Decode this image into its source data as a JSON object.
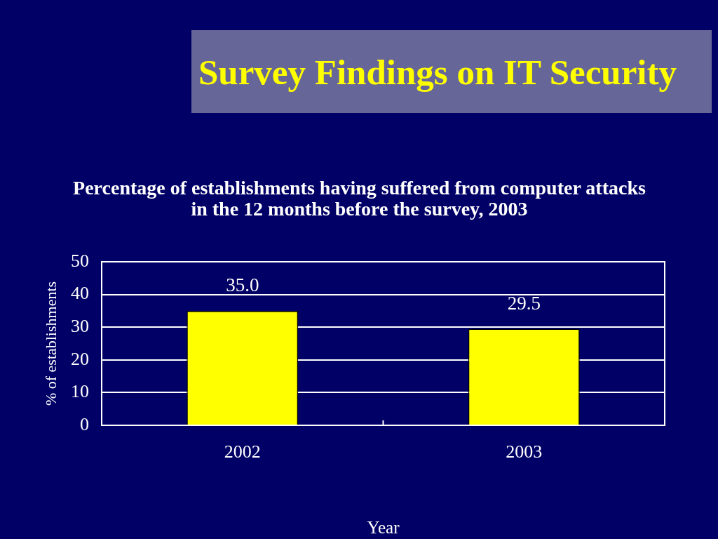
{
  "chart_data": {
    "type": "bar",
    "title": "Survey Findings on IT Security",
    "subtitle": "Percentage of establishments having suffered from computer attacks in the 12 months before the survey, 2003",
    "xlabel": "Year",
    "ylabel": "% of establishments",
    "categories": [
      "2002",
      "2003"
    ],
    "values": [
      35.0,
      29.5
    ],
    "value_labels": [
      "35.0",
      "29.5"
    ],
    "color": "#ffff00",
    "ylim": [
      0,
      50
    ],
    "yticks": [
      0,
      10,
      20,
      30,
      40,
      50
    ],
    "grid": "y"
  }
}
